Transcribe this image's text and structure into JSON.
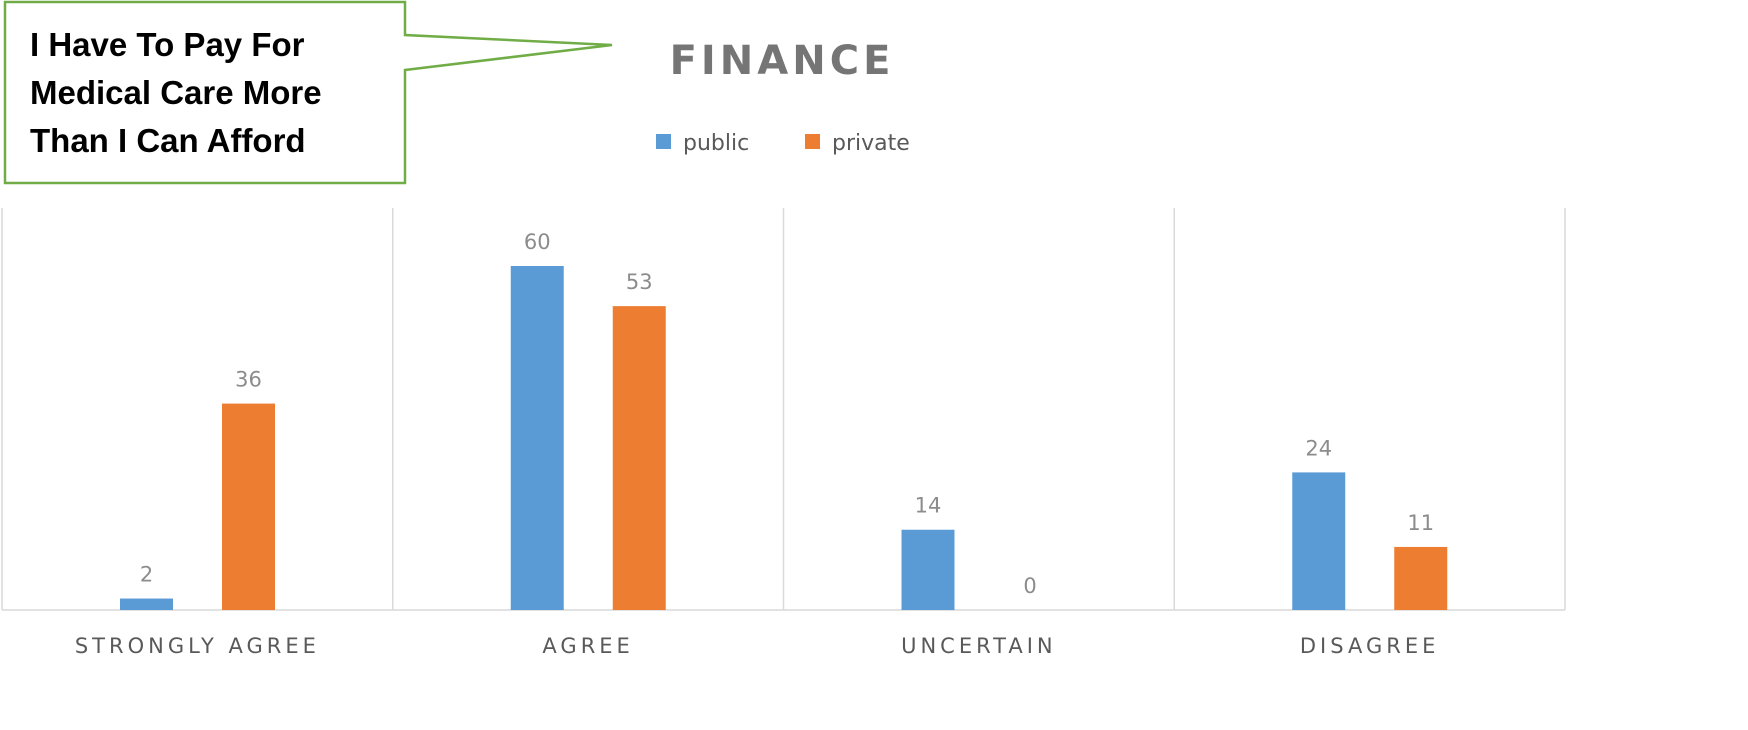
{
  "callout": {
    "lines": [
      "I Have To Pay For",
      "Medical Care More",
      "Than I Can Afford"
    ],
    "border_color": "#70AD47"
  },
  "chart_data": {
    "type": "bar",
    "title": "FINANCE",
    "categories": [
      "STRONGLY AGREE",
      "AGREE",
      "UNCERTAIN",
      "DISAGREE"
    ],
    "series": [
      {
        "name": "public",
        "values": [
          2,
          60,
          14,
          24
        ],
        "color": "#5B9BD5"
      },
      {
        "name": "private",
        "values": [
          36,
          53,
          0,
          11
        ],
        "color": "#ED7D31"
      }
    ],
    "ylim": [
      0,
      60
    ],
    "legend": "top",
    "grid": false,
    "category_dividers": true,
    "data_labels": true
  }
}
